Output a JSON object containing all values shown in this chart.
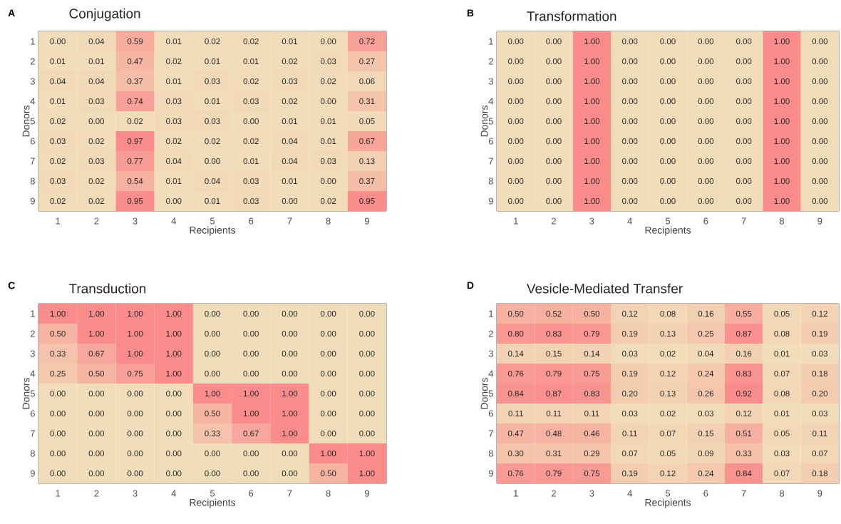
{
  "chart_data": [
    {
      "type": "heatmap",
      "title": "Conjugation",
      "annotations": [
        "A"
      ],
      "xlabel": "Recipients",
      "ylabel": "Donors",
      "categories": [
        "1",
        "2",
        "3",
        "4",
        "5",
        "6",
        "7",
        "8",
        "9"
      ],
      "y_categories": [
        "1",
        "2",
        "3",
        "4",
        "5",
        "6",
        "7",
        "8",
        "9"
      ],
      "cells": [
        [
          0,
          0.04,
          0.59,
          0.01,
          0.02,
          0.02,
          0.01,
          0,
          0.72
        ],
        [
          0.01,
          0.01,
          0.47,
          0.02,
          0.01,
          0.01,
          0.02,
          0.03,
          0.27
        ],
        [
          0.04,
          0.04,
          0.37,
          0.01,
          0.03,
          0.02,
          0.03,
          0.02,
          0.06
        ],
        [
          0.01,
          0.03,
          0.74,
          0.03,
          0.01,
          0.03,
          0.02,
          0,
          0.31
        ],
        [
          0.02,
          0,
          0.02,
          0.03,
          0.03,
          0,
          0.01,
          0.01,
          0.05
        ],
        [
          0.03,
          0.02,
          0.97,
          0.02,
          0.02,
          0.02,
          0.04,
          0.01,
          0.67
        ],
        [
          0.02,
          0.03,
          0.77,
          0.04,
          0,
          0.01,
          0.04,
          0.03,
          0.13
        ],
        [
          0.03,
          0.02,
          0.54,
          0.01,
          0.04,
          0.03,
          0.01,
          0,
          0.37
        ],
        [
          0.02,
          0.02,
          0.95,
          0,
          0.01,
          0.03,
          0,
          0.02,
          0.95
        ]
      ],
      "cell_labels": [
        [
          "0.00",
          "0.04",
          "0.59",
          "0.01",
          "0.02",
          "0.02",
          "0.01",
          "0.00",
          "0.72"
        ],
        [
          "0.01",
          "0.01",
          "0.47",
          "0.02",
          "0.01",
          "0.01",
          "0.02",
          "0.03",
          "0.27"
        ],
        [
          "0.04",
          "0.04",
          "0.37",
          "0.01",
          "0.03",
          "0.02",
          "0.03",
          "0.02",
          "0.06"
        ],
        [
          "0.01",
          "0.03",
          "0.74",
          "0.03",
          "0.01",
          "0.03",
          "0.02",
          "0.00",
          "0.31"
        ],
        [
          "0.02",
          "0.00",
          "0.02",
          "0.03",
          "0.03",
          "0.00",
          "0.01",
          "0.01",
          "0.05"
        ],
        [
          "0.03",
          "0.02",
          "0.97",
          "0.02",
          "0.02",
          "0.02",
          "0.04",
          "0.01",
          "0.67"
        ],
        [
          "0.02",
          "0.03",
          "0.77",
          "0.04",
          "0.00",
          "0.01",
          "0.04",
          "0.03",
          "0.13"
        ],
        [
          "0.03",
          "0.02",
          "0.54",
          "0.01",
          "0.04",
          "0.03",
          "0.01",
          "0.00",
          "0.37"
        ],
        [
          "0.02",
          "0.02",
          "0.95",
          "0.00",
          "0.01",
          "0.03",
          "0.00",
          "0.02",
          "0.95"
        ]
      ]
    },
    {
      "type": "heatmap",
      "title": "Transformation",
      "annotations": [
        "B"
      ],
      "xlabel": "Recipients",
      "ylabel": "Donors",
      "categories": [
        "1",
        "2",
        "3",
        "4",
        "5",
        "6",
        "7",
        "8",
        "9"
      ],
      "y_categories": [
        "1",
        "2",
        "3",
        "4",
        "5",
        "6",
        "7",
        "8",
        "9"
      ],
      "cells": [
        [
          0,
          0,
          1,
          0,
          0,
          0,
          0,
          1,
          0
        ],
        [
          0,
          0,
          1,
          0,
          0,
          0,
          0,
          1,
          0
        ],
        [
          0,
          0,
          1,
          0,
          0,
          0,
          0,
          1,
          0
        ],
        [
          0,
          0,
          1,
          0,
          0,
          0,
          0,
          1,
          0
        ],
        [
          0,
          0,
          1,
          0,
          0,
          0,
          0,
          1,
          0
        ],
        [
          0,
          0,
          1,
          0,
          0,
          0,
          0,
          1,
          0
        ],
        [
          0,
          0,
          1,
          0,
          0,
          0,
          0,
          1,
          0
        ],
        [
          0,
          0,
          1,
          0,
          0,
          0,
          0,
          1,
          0
        ],
        [
          0,
          0,
          1,
          0,
          0,
          0,
          0,
          1,
          0
        ]
      ],
      "cell_labels": [
        [
          "0.00",
          "0.00",
          "1.00",
          "0.00",
          "0.00",
          "0.00",
          "0.00",
          "1.00",
          "0.00"
        ],
        [
          "0.00",
          "0.00",
          "1.00",
          "0.00",
          "0.00",
          "0.00",
          "0.00",
          "1.00",
          "0.00"
        ],
        [
          "0.00",
          "0.00",
          "1.00",
          "0.00",
          "0.00",
          "0.00",
          "0.00",
          "1.00",
          "0.00"
        ],
        [
          "0.00",
          "0.00",
          "1.00",
          "0.00",
          "0.00",
          "0.00",
          "0.00",
          "1.00",
          "0.00"
        ],
        [
          "0.00",
          "0.00",
          "1.00",
          "0.00",
          "0.00",
          "0.00",
          "0.00",
          "1.00",
          "0.00"
        ],
        [
          "0.00",
          "0.00",
          "1.00",
          "0.00",
          "0.00",
          "0.00",
          "0.00",
          "1.00",
          "0.00"
        ],
        [
          "0.00",
          "0.00",
          "1.00",
          "0.00",
          "0.00",
          "0.00",
          "0.00",
          "1.00",
          "0.00"
        ],
        [
          "0.00",
          "0.00",
          "1.00",
          "0.00",
          "0.00",
          "0.00",
          "0.00",
          "1.00",
          "0.00"
        ],
        [
          "0.00",
          "0.00",
          "1.00",
          "0.00",
          "0.00",
          "0.00",
          "0.00",
          "1.00",
          "0.00"
        ]
      ]
    },
    {
      "type": "heatmap",
      "title": "Transduction",
      "annotations": [
        "C"
      ],
      "xlabel": "Recipients",
      "ylabel": "Donors",
      "categories": [
        "1",
        "2",
        "3",
        "4",
        "5",
        "6",
        "7",
        "8",
        "9"
      ],
      "y_categories": [
        "1",
        "2",
        "3",
        "4",
        "5",
        "6",
        "7",
        "8",
        "9"
      ],
      "cells": [
        [
          1,
          1,
          1,
          1,
          0,
          0,
          0,
          0,
          0
        ],
        [
          0.5,
          1,
          1,
          1,
          0,
          0,
          0,
          0,
          0
        ],
        [
          0.33,
          0.67,
          1,
          1,
          0,
          0,
          0,
          0,
          0
        ],
        [
          0.25,
          0.5,
          0.75,
          1,
          0,
          0,
          0,
          0,
          0
        ],
        [
          0,
          0,
          0,
          0,
          1,
          1,
          1,
          0,
          0
        ],
        [
          0,
          0,
          0,
          0,
          0.5,
          1,
          1,
          0,
          0
        ],
        [
          0,
          0,
          0,
          0,
          0.33,
          0.67,
          1,
          0,
          0
        ],
        [
          0,
          0,
          0,
          0,
          0,
          0,
          0,
          1,
          1
        ],
        [
          0,
          0,
          0,
          0,
          0,
          0,
          0,
          0.5,
          1
        ]
      ],
      "cell_labels": [
        [
          "1.00",
          "1.00",
          "1.00",
          "1.00",
          "0.00",
          "0.00",
          "0.00",
          "0.00",
          "0.00"
        ],
        [
          "0.50",
          "1.00",
          "1.00",
          "1.00",
          "0.00",
          "0.00",
          "0.00",
          "0.00",
          "0.00"
        ],
        [
          "0.33",
          "0.67",
          "1.00",
          "1.00",
          "0.00",
          "0.00",
          "0.00",
          "0.00",
          "0.00"
        ],
        [
          "0.25",
          "0.50",
          "0.75",
          "1.00",
          "0.00",
          "0.00",
          "0.00",
          "0.00",
          "0.00"
        ],
        [
          "0.00",
          "0.00",
          "0.00",
          "0.00",
          "1.00",
          "1.00",
          "1.00",
          "0.00",
          "0.00"
        ],
        [
          "0.00",
          "0.00",
          "0.00",
          "0.00",
          "0.50",
          "1.00",
          "1.00",
          "0.00",
          "0.00"
        ],
        [
          "0.00",
          "0.00",
          "0.00",
          "0.00",
          "0.33",
          "0.67",
          "1.00",
          "0.00",
          "0.00"
        ],
        [
          "0.00",
          "0.00",
          "0.00",
          "0.00",
          "0.00",
          "0.00",
          "0.00",
          "1.00",
          "1.00"
        ],
        [
          "0.00",
          "0.00",
          "0.00",
          "0.00",
          "0.00",
          "0.00",
          "0.00",
          "0.50",
          "1.00"
        ]
      ]
    },
    {
      "type": "heatmap",
      "title": "Vesicle-Mediated Transfer",
      "annotations": [
        "D"
      ],
      "xlabel": "Recipients",
      "ylabel": "Donors",
      "categories": [
        "1",
        "2",
        "3",
        "4",
        "5",
        "6",
        "7",
        "8",
        "9"
      ],
      "y_categories": [
        "1",
        "2",
        "3",
        "4",
        "5",
        "6",
        "7",
        "8",
        "9"
      ],
      "cells": [
        [
          0.5,
          0.52,
          0.5,
          0.12,
          0.08,
          0.16,
          0.55,
          0.05,
          0.12
        ],
        [
          0.8,
          0.83,
          0.79,
          0.19,
          0.13,
          0.25,
          0.87,
          0.08,
          0.19
        ],
        [
          0.14,
          0.15,
          0.14,
          0.03,
          0.02,
          0.04,
          0.16,
          0.01,
          0.03
        ],
        [
          0.76,
          0.79,
          0.75,
          0.19,
          0.12,
          0.24,
          0.83,
          0.07,
          0.18
        ],
        [
          0.84,
          0.87,
          0.83,
          0.2,
          0.13,
          0.26,
          0.92,
          0.08,
          0.2
        ],
        [
          0.11,
          0.11,
          0.11,
          0.03,
          0.02,
          0.03,
          0.12,
          0.01,
          0.03
        ],
        [
          0.47,
          0.48,
          0.46,
          0.11,
          0.07,
          0.15,
          0.51,
          0.05,
          0.11
        ],
        [
          0.3,
          0.31,
          0.29,
          0.07,
          0.05,
          0.09,
          0.33,
          0.03,
          0.07
        ],
        [
          0.76,
          0.79,
          0.75,
          0.19,
          0.12,
          0.24,
          0.84,
          0.07,
          0.18
        ]
      ],
      "cell_labels": [
        [
          "0.50",
          "0.52",
          "0.50",
          "0.12",
          "0.08",
          "0.16",
          "0.55",
          "0.05",
          "0.12"
        ],
        [
          "0.80",
          "0.83",
          "0.79",
          "0.19",
          "0.13",
          "0.25",
          "0.87",
          "0.08",
          "0.19"
        ],
        [
          "0.14",
          "0.15",
          "0.14",
          "0.03",
          "0.02",
          "0.04",
          "0.16",
          "0.01",
          "0.03"
        ],
        [
          "0.76",
          "0.79",
          "0.75",
          "0.19",
          "0.12",
          "0.24",
          "0.83",
          "0.07",
          "0.18"
        ],
        [
          "0.84",
          "0.87",
          "0.83",
          "0.20",
          "0.13",
          "0.26",
          "0.92",
          "0.08",
          "0.20"
        ],
        [
          "0.11",
          "0.11",
          "0.11",
          "0.03",
          "0.02",
          "0.03",
          "0.12",
          "0.01",
          "0.03"
        ],
        [
          "0.47",
          "0.48",
          "0.46",
          "0.11",
          "0.07",
          "0.15",
          "0.51",
          "0.05",
          "0.11"
        ],
        [
          "0.30",
          "0.31",
          "0.29",
          "0.07",
          "0.05",
          "0.09",
          "0.33",
          "0.03",
          "0.07"
        ],
        [
          "0.76",
          "0.79",
          "0.75",
          "0.19",
          "0.12",
          "0.24",
          "0.84",
          "0.07",
          "0.18"
        ]
      ]
    }
  ]
}
